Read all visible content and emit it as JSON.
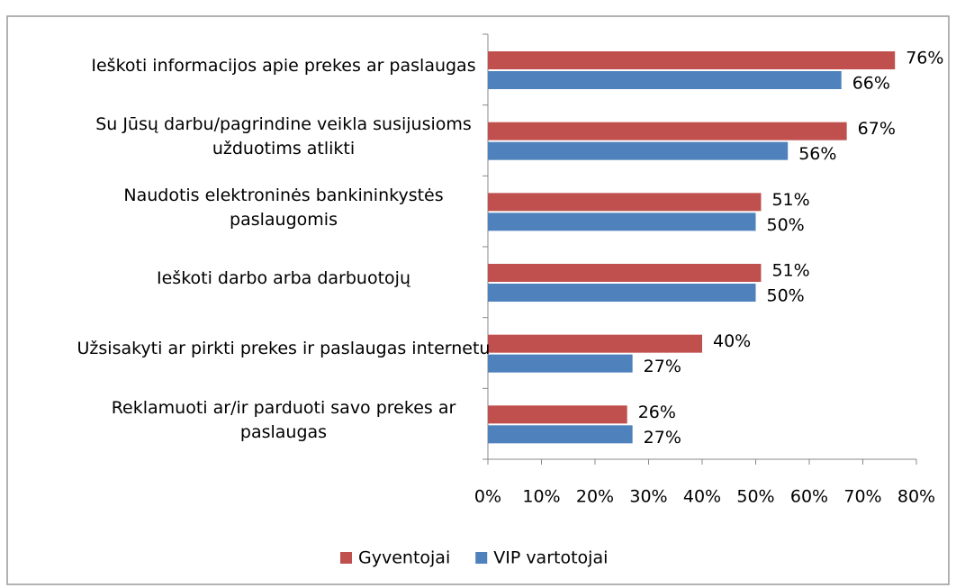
{
  "chart_data": {
    "type": "barh",
    "categories": [
      "Ieškoti informacijos apie prekes ar paslaugas",
      "Su Jūsų darbu/pagrindine veikla susijusioms užduotims atlikti",
      "Naudotis elektroninės bankininkystės paslaugomis",
      "Ieškoti darbo arba darbuotojų",
      "Užsisakyti ar pirkti prekes ir paslaugas internetu",
      "Reklamuoti ar/ir parduoti savo prekes ar paslaugas"
    ],
    "series": [
      {
        "name": "Gyventojai",
        "color": "#c0504d",
        "values": [
          76,
          67,
          51,
          51,
          40,
          26
        ],
        "value_labels": [
          "76%",
          "67%",
          "51%",
          "51%",
          "40%",
          "26%"
        ]
      },
      {
        "name": "VIP vartotojai",
        "color": "#4f81bd",
        "values": [
          66,
          56,
          50,
          50,
          27,
          27
        ],
        "value_labels": [
          "66%",
          "56%",
          "50%",
          "50%",
          "27%",
          "27%"
        ]
      }
    ],
    "xlim": [
      0,
      80
    ],
    "xticks": [
      {
        "value": 0,
        "label": "0%"
      },
      {
        "value": 10,
        "label": "10%"
      },
      {
        "value": 20,
        "label": "20%"
      },
      {
        "value": 30,
        "label": "30%"
      },
      {
        "value": 40,
        "label": "40%"
      },
      {
        "value": 50,
        "label": "50%"
      },
      {
        "value": 60,
        "label": "60%"
      },
      {
        "value": 70,
        "label": "70%"
      },
      {
        "value": 80,
        "label": "80%"
      }
    ],
    "legend": "bottom"
  }
}
